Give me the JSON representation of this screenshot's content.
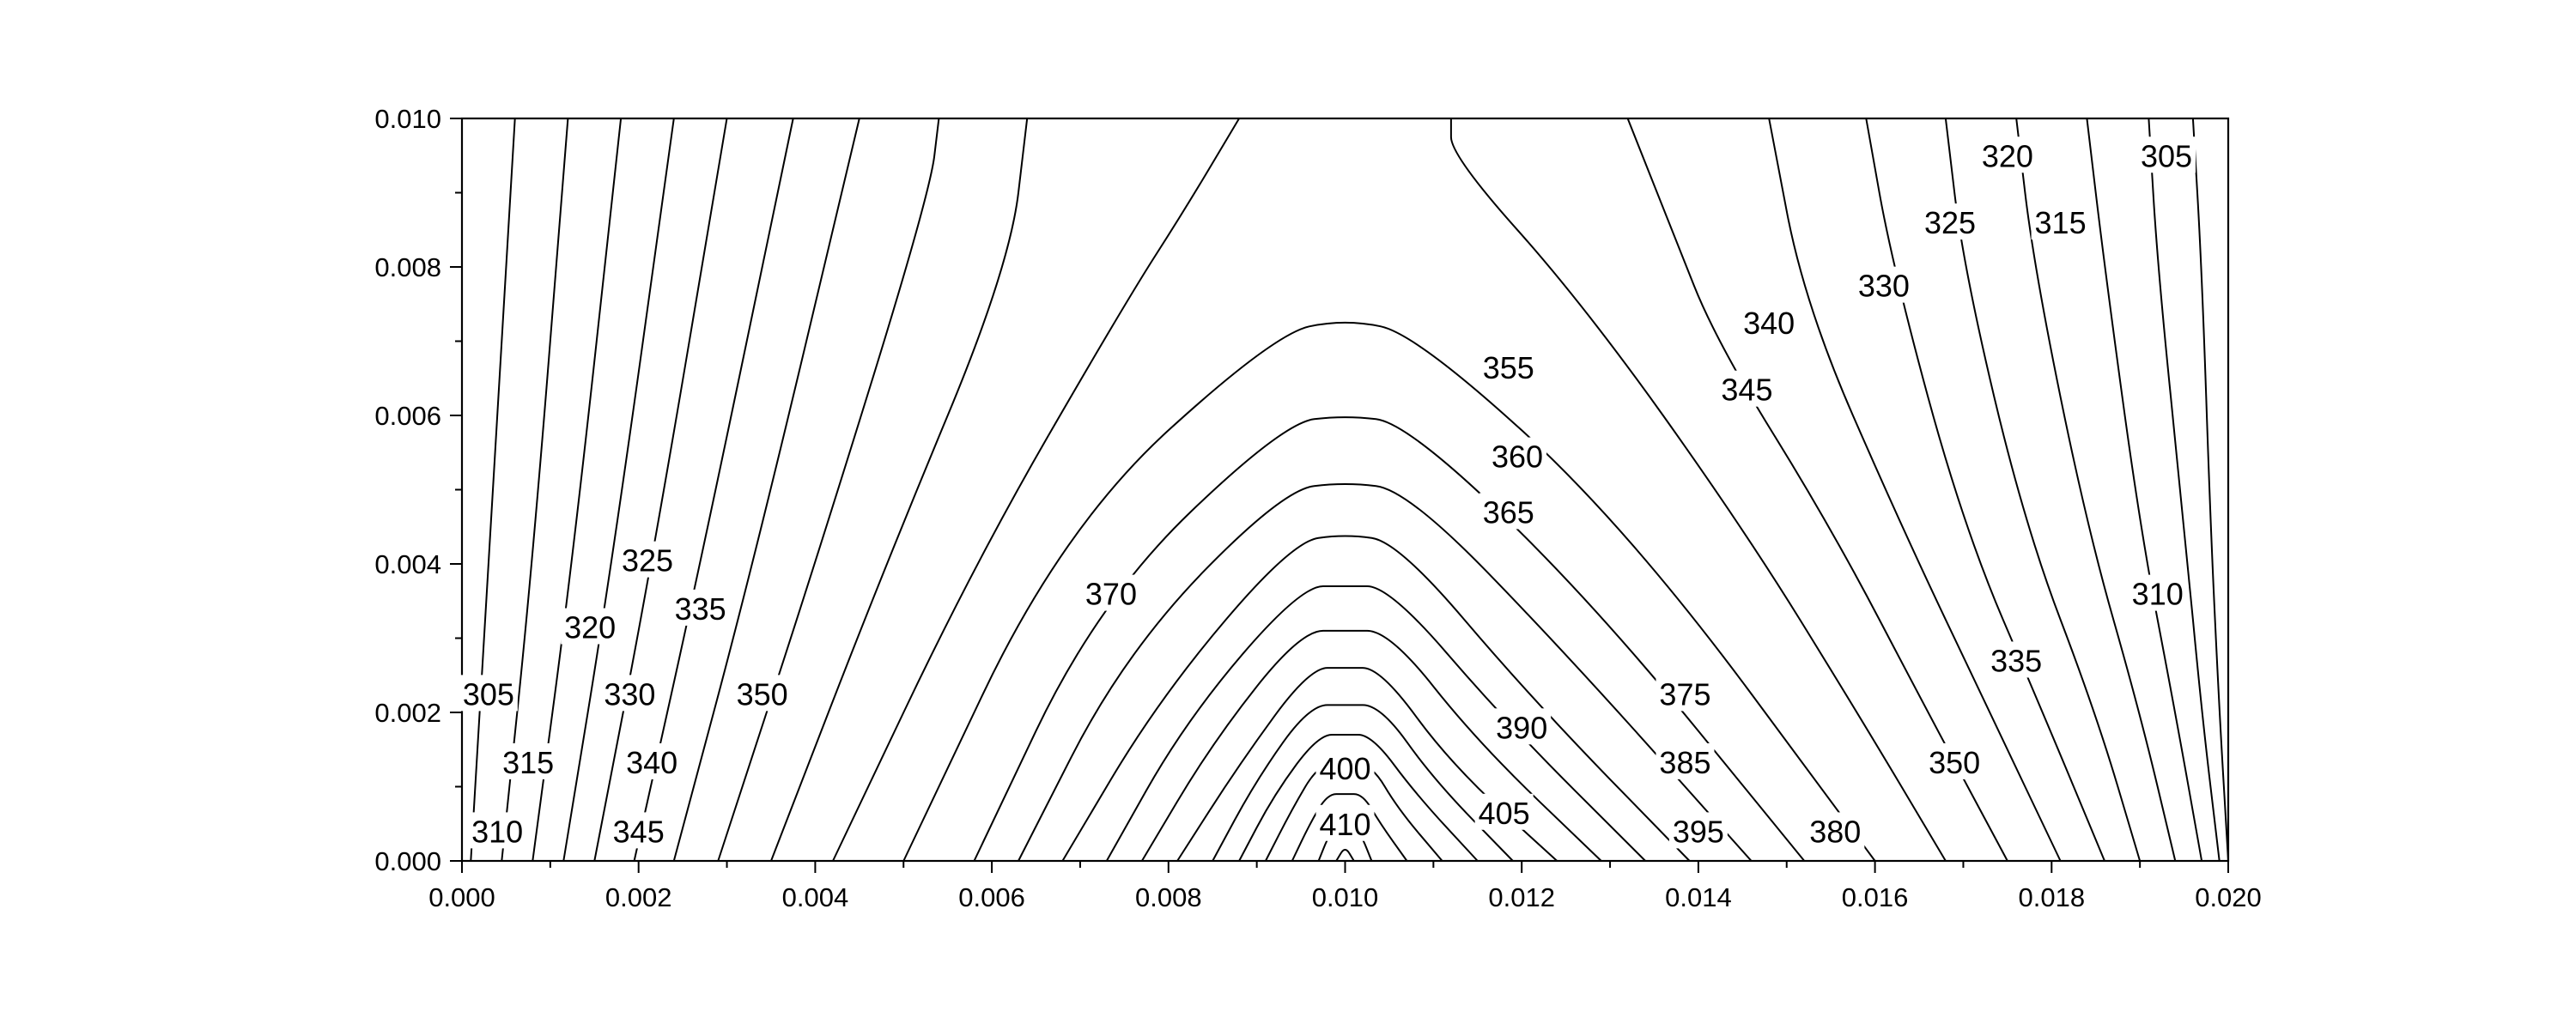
{
  "chart_data": {
    "type": "contour",
    "title": "",
    "xlabel": "",
    "ylabel": "",
    "xlim": [
      0.0,
      0.02
    ],
    "ylim": [
      0.0,
      0.01
    ],
    "x_ticks": [
      "0.000",
      "0.002",
      "0.004",
      "0.006",
      "0.008",
      "0.010",
      "0.012",
      "0.014",
      "0.016",
      "0.018",
      "0.020"
    ],
    "y_ticks": [
      "0.000",
      "0.002",
      "0.004",
      "0.006",
      "0.008",
      "0.010"
    ],
    "grid": false,
    "line_color": "#000000",
    "levels": [
      305,
      310,
      315,
      320,
      325,
      330,
      335,
      340,
      345,
      350,
      355,
      360,
      365,
      370,
      375,
      380,
      385,
      390,
      395,
      400,
      405,
      410
    ],
    "contour_labels": [
      {
        "text": "305",
        "x": 0.0003,
        "y": 0.00225
      },
      {
        "text": "310",
        "x": 0.0004,
        "y": 0.0004
      },
      {
        "text": "315",
        "x": 0.00075,
        "y": 0.00133
      },
      {
        "text": "320",
        "x": 0.00145,
        "y": 0.00315
      },
      {
        "text": "325",
        "x": 0.0021,
        "y": 0.00405
      },
      {
        "text": "330",
        "x": 0.0019,
        "y": 0.00225
      },
      {
        "text": "335",
        "x": 0.0027,
        "y": 0.0034
      },
      {
        "text": "340",
        "x": 0.00215,
        "y": 0.00133
      },
      {
        "text": "345",
        "x": 0.002,
        "y": 0.0004
      },
      {
        "text": "350",
        "x": 0.0034,
        "y": 0.00225
      },
      {
        "text": "370",
        "x": 0.00735,
        "y": 0.0036
      },
      {
        "text": "355",
        "x": 0.01185,
        "y": 0.00665
      },
      {
        "text": "360",
        "x": 0.01195,
        "y": 0.00545
      },
      {
        "text": "365",
        "x": 0.01185,
        "y": 0.0047
      },
      {
        "text": "375",
        "x": 0.01385,
        "y": 0.00225
      },
      {
        "text": "390",
        "x": 0.012,
        "y": 0.0018
      },
      {
        "text": "385",
        "x": 0.01385,
        "y": 0.00133
      },
      {
        "text": "400",
        "x": 0.01,
        "y": 0.00125
      },
      {
        "text": "405",
        "x": 0.0118,
        "y": 0.00065
      },
      {
        "text": "410",
        "x": 0.01,
        "y": 0.0005
      },
      {
        "text": "395",
        "x": 0.014,
        "y": 0.0004
      },
      {
        "text": "380",
        "x": 0.01555,
        "y": 0.0004
      },
      {
        "text": "350",
        "x": 0.0169,
        "y": 0.00133
      },
      {
        "text": "335",
        "x": 0.0176,
        "y": 0.0027
      },
      {
        "text": "340",
        "x": 0.0148,
        "y": 0.00725
      },
      {
        "text": "345",
        "x": 0.01455,
        "y": 0.00635
      },
      {
        "text": "330",
        "x": 0.0161,
        "y": 0.00775
      },
      {
        "text": "325",
        "x": 0.01685,
        "y": 0.0086
      },
      {
        "text": "315",
        "x": 0.0181,
        "y": 0.0086
      },
      {
        "text": "320",
        "x": 0.0175,
        "y": 0.0095
      },
      {
        "text": "305",
        "x": 0.0193,
        "y": 0.0095
      },
      {
        "text": "310",
        "x": 0.0192,
        "y": 0.0036
      }
    ],
    "contour_lines": [
      {
        "level": 305,
        "points": [
          [
            0.0001,
            0.0
          ],
          [
            0.0003,
            0.004
          ],
          [
            0.0006,
            0.01
          ]
        ]
      },
      {
        "level": 310,
        "points": [
          [
            0.00045,
            0.0
          ],
          [
            0.0008,
            0.004
          ],
          [
            0.0012,
            0.01
          ]
        ]
      },
      {
        "level": 315,
        "points": [
          [
            0.0008,
            0.0
          ],
          [
            0.00125,
            0.004
          ],
          [
            0.0018,
            0.01
          ]
        ]
      },
      {
        "level": 320,
        "points": [
          [
            0.00115,
            0.0
          ],
          [
            0.0017,
            0.004
          ],
          [
            0.0024,
            0.01
          ]
        ]
      },
      {
        "level": 325,
        "points": [
          [
            0.0015,
            0.0
          ],
          [
            0.00215,
            0.004
          ],
          [
            0.003,
            0.01
          ]
        ]
      },
      {
        "level": 330,
        "points": [
          [
            0.00195,
            0.0
          ],
          [
            0.0027,
            0.004
          ],
          [
            0.00375,
            0.01
          ]
        ]
      },
      {
        "level": 335,
        "points": [
          [
            0.0024,
            0.0
          ],
          [
            0.0033,
            0.004
          ],
          [
            0.0045,
            0.01
          ]
        ]
      },
      {
        "level": 340,
        "points": [
          [
            0.0029,
            0.0
          ],
          [
            0.004,
            0.004
          ],
          [
            0.0053,
            0.009
          ],
          [
            0.0054,
            0.01
          ]
        ]
      },
      {
        "level": 345,
        "points": [
          [
            0.0035,
            0.0
          ],
          [
            0.0048,
            0.004
          ],
          [
            0.0062,
            0.008
          ],
          [
            0.0064,
            0.01
          ]
        ]
      },
      {
        "level": 350,
        "points": [
          [
            0.0042,
            0.0
          ],
          [
            0.0058,
            0.004
          ],
          [
            0.0075,
            0.0075
          ],
          [
            0.0082,
            0.0088
          ],
          [
            0.0088,
            0.01
          ]
        ]
      },
      {
        "level": 350,
        "points": [
          [
            0.0168,
            0.0
          ],
          [
            0.0158,
            0.002
          ],
          [
            0.0145,
            0.0045
          ],
          [
            0.0127,
            0.0075
          ],
          [
            0.0112,
            0.0095
          ],
          [
            0.0112,
            0.01
          ]
        ]
      },
      {
        "level": 345,
        "points": [
          [
            0.0175,
            0.0
          ],
          [
            0.0166,
            0.002
          ],
          [
            0.0155,
            0.0045
          ],
          [
            0.0142,
            0.007
          ],
          [
            0.0137,
            0.0085
          ],
          [
            0.0132,
            0.01
          ]
        ]
      },
      {
        "level": 340,
        "points": [
          [
            0.0181,
            0.0
          ],
          [
            0.0173,
            0.002
          ],
          [
            0.0163,
            0.0045
          ],
          [
            0.0152,
            0.0075
          ],
          [
            0.0148,
            0.01
          ]
        ]
      },
      {
        "level": 335,
        "points": [
          [
            0.0186,
            0.0
          ],
          [
            0.0179,
            0.002
          ],
          [
            0.017,
            0.0045
          ],
          [
            0.0162,
            0.008
          ],
          [
            0.0159,
            0.01
          ]
        ]
      },
      {
        "level": 330,
        "points": [
          [
            0.019,
            0.0
          ],
          [
            0.0185,
            0.002
          ],
          [
            0.0177,
            0.0045
          ],
          [
            0.017,
            0.008
          ],
          [
            0.0168,
            0.01
          ]
        ]
      },
      {
        "level": 325,
        "points": [
          [
            0.0194,
            0.0
          ],
          [
            0.019,
            0.002
          ],
          [
            0.0184,
            0.0045
          ],
          [
            0.0178,
            0.008
          ],
          [
            0.0176,
            0.01
          ]
        ]
      },
      {
        "level": 320,
        "points": [
          [
            0.0197,
            0.0
          ],
          [
            0.0194,
            0.002
          ],
          [
            0.019,
            0.0045
          ],
          [
            0.0186,
            0.008
          ],
          [
            0.0184,
            0.01
          ]
        ]
      },
      {
        "level": 315,
        "points": [
          [
            0.0199,
            0.0
          ],
          [
            0.0197,
            0.002
          ],
          [
            0.0195,
            0.0045
          ],
          [
            0.0192,
            0.008
          ],
          [
            0.0191,
            0.01
          ]
        ]
      },
      {
        "level": 310,
        "points": [
          [
            0.02,
            0.0
          ],
          [
            0.0199,
            0.002
          ],
          [
            0.0198,
            0.0045
          ],
          [
            0.0197,
            0.008
          ],
          [
            0.0196,
            0.01
          ]
        ]
      },
      {
        "level": 355,
        "points": [
          [
            0.005,
            0.0
          ],
          [
            0.0068,
            0.0045
          ],
          [
            0.0092,
            0.0071
          ],
          [
            0.01,
            0.0073
          ],
          [
            0.0108,
            0.0071
          ],
          [
            0.0132,
            0.0045
          ],
          [
            0.016,
            0.0
          ]
        ]
      },
      {
        "level": 360,
        "points": [
          [
            0.0058,
            0.0
          ],
          [
            0.0072,
            0.0035
          ],
          [
            0.0093,
            0.0059
          ],
          [
            0.01,
            0.006
          ],
          [
            0.0107,
            0.0059
          ],
          [
            0.0128,
            0.0035
          ],
          [
            0.0152,
            0.0
          ]
        ]
      },
      {
        "level": 365,
        "points": [
          [
            0.0063,
            0.0
          ],
          [
            0.0075,
            0.0028
          ],
          [
            0.0093,
            0.005
          ],
          [
            0.01,
            0.0051
          ],
          [
            0.0107,
            0.005
          ],
          [
            0.0125,
            0.0028
          ],
          [
            0.0146,
            0.0
          ]
        ]
      },
      {
        "level": 370,
        "points": [
          [
            0.0068,
            0.0
          ],
          [
            0.0079,
            0.0022
          ],
          [
            0.0094,
            0.0043
          ],
          [
            0.01,
            0.0044
          ],
          [
            0.0106,
            0.0043
          ],
          [
            0.0121,
            0.0022
          ],
          [
            0.0139,
            0.0
          ]
        ]
      },
      {
        "level": 375,
        "points": [
          [
            0.0073,
            0.0
          ],
          [
            0.0082,
            0.0019
          ],
          [
            0.0095,
            0.0037
          ],
          [
            0.01,
            0.0037
          ],
          [
            0.0105,
            0.0037
          ],
          [
            0.0118,
            0.0019
          ],
          [
            0.0134,
            0.0
          ]
        ]
      },
      {
        "level": 380,
        "points": [
          [
            0.0077,
            0.0
          ],
          [
            0.0085,
            0.0016
          ],
          [
            0.0095,
            0.0031
          ],
          [
            0.01,
            0.0031
          ],
          [
            0.0105,
            0.0031
          ],
          [
            0.0115,
            0.0016
          ],
          [
            0.0129,
            0.0
          ]
        ]
      },
      {
        "level": 385,
        "points": [
          [
            0.0081,
            0.0
          ],
          [
            0.0088,
            0.0013
          ],
          [
            0.0096,
            0.0026
          ],
          [
            0.01,
            0.0026
          ],
          [
            0.0104,
            0.0026
          ],
          [
            0.0112,
            0.0013
          ],
          [
            0.0124,
            0.0
          ]
        ]
      },
      {
        "level": 390,
        "points": [
          [
            0.0085,
            0.0
          ],
          [
            0.009,
            0.0011
          ],
          [
            0.0096,
            0.0021
          ],
          [
            0.01,
            0.0021
          ],
          [
            0.0104,
            0.0021
          ],
          [
            0.011,
            0.0011
          ],
          [
            0.0119,
            0.0
          ]
        ]
      },
      {
        "level": 395,
        "points": [
          [
            0.0088,
            0.0
          ],
          [
            0.0092,
            0.0009
          ],
          [
            0.0097,
            0.0017
          ],
          [
            0.01,
            0.0017
          ],
          [
            0.0103,
            0.0017
          ],
          [
            0.0108,
            0.0009
          ],
          [
            0.0115,
            0.0
          ]
        ]
      },
      {
        "level": 400,
        "points": [
          [
            0.0091,
            0.0
          ],
          [
            0.0094,
            0.0007
          ],
          [
            0.0097,
            0.0013
          ],
          [
            0.01,
            0.0013
          ],
          [
            0.0103,
            0.0013
          ],
          [
            0.0106,
            0.0007
          ],
          [
            0.0111,
            0.0
          ]
        ]
      },
      {
        "level": 405,
        "points": [
          [
            0.0094,
            0.0
          ],
          [
            0.0096,
            0.0005
          ],
          [
            0.0098,
            0.0009
          ],
          [
            0.01,
            0.0009
          ],
          [
            0.0102,
            0.0009
          ],
          [
            0.0104,
            0.0005
          ],
          [
            0.0107,
            0.0
          ]
        ]
      },
      {
        "level": 410,
        "points": [
          [
            0.0097,
            0.0
          ],
          [
            0.0098,
            0.0003
          ],
          [
            0.0099,
            0.0005
          ],
          [
            0.01,
            0.0005
          ],
          [
            0.0101,
            0.0005
          ],
          [
            0.0102,
            0.0003
          ],
          [
            0.0103,
            0.0
          ]
        ]
      },
      {
        "level": 415,
        "points": [
          [
            0.0099,
            0.0
          ],
          [
            0.01,
            0.0002
          ],
          [
            0.0101,
            0.0
          ]
        ]
      }
    ]
  }
}
